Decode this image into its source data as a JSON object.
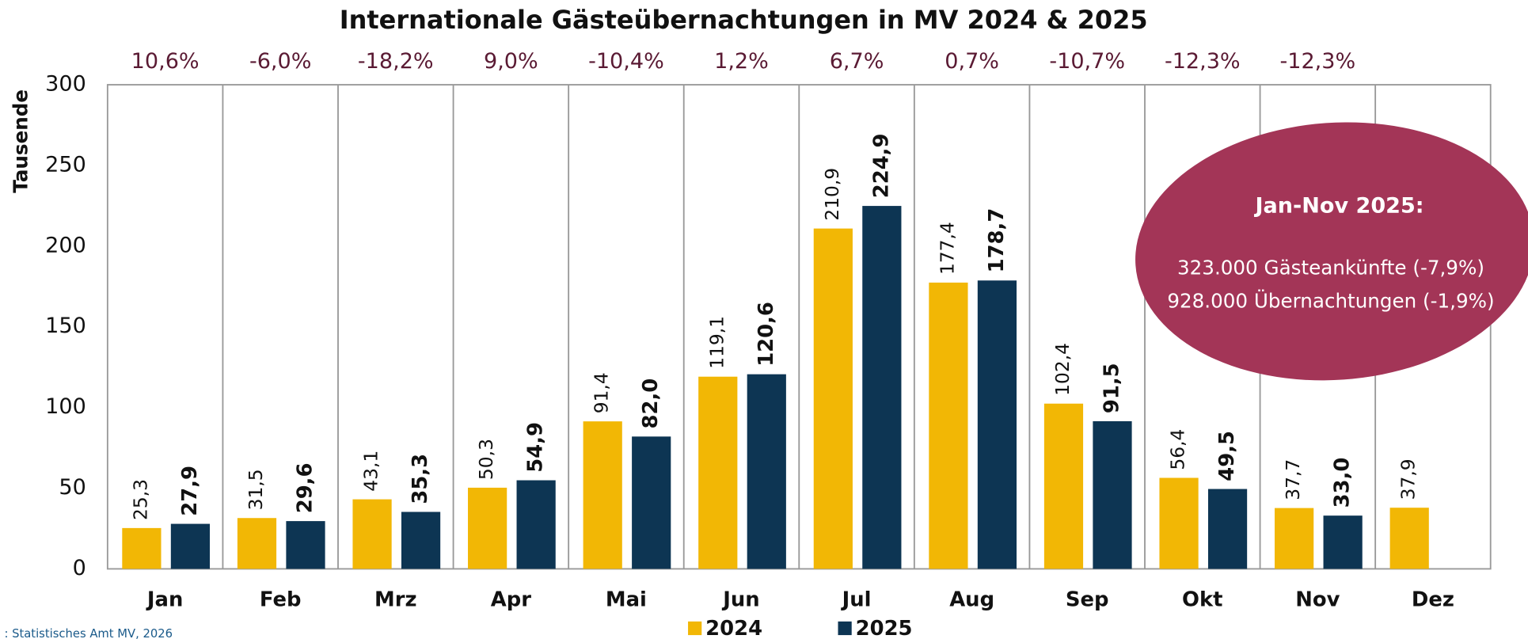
{
  "chart_data": {
    "type": "bar",
    "title": "Internationale Gästeübernachtungen in MV 2024 & 2025",
    "y_label": "Tausende",
    "categories": [
      "Jan",
      "Feb",
      "Mrz",
      "Apr",
      "Mai",
      "Jun",
      "Jul",
      "Aug",
      "Sep",
      "Okt",
      "Nov",
      "Dez"
    ],
    "series": [
      {
        "name": "2024",
        "color": "#f2b705",
        "values": [
          25.3,
          31.5,
          43.1,
          50.3,
          91.4,
          119.1,
          210.9,
          177.4,
          102.4,
          56.4,
          37.7,
          37.9
        ],
        "value_labels": [
          "25,3",
          "31,5",
          "43,1",
          "50,3",
          "91,4",
          "119,1",
          "210,9",
          "177,4",
          "102,4",
          "56,4",
          "37,7",
          "37,9"
        ]
      },
      {
        "name": "2025",
        "color": "#0d3553",
        "values": [
          27.9,
          29.6,
          35.3,
          54.9,
          82.0,
          120.6,
          224.9,
          178.7,
          91.5,
          49.5,
          33.0,
          null
        ],
        "value_labels": [
          "27,9",
          "29,6",
          "35,3",
          "54,9",
          "82,0",
          "120,6",
          "224,9",
          "178,7",
          "91,5",
          "49,5",
          "33,0",
          null
        ]
      }
    ],
    "change_labels": [
      "10,6%",
      "-6,0%",
      "-18,2%",
      "9,0%",
      "-10,4%",
      "1,2%",
      "6,7%",
      "0,7%",
      "-10,7%",
      "-12,3%",
      "-12,3%",
      null
    ],
    "ylim": [
      0,
      300
    ],
    "yticks": [
      0,
      50,
      100,
      150,
      200,
      250,
      300
    ],
    "annotation": {
      "heading": "Jan-Nov 2025:",
      "lines": [
        "323.000 Gästeankünfte (-7,9%)",
        "928.000 Übernachtungen (-1,9%)"
      ]
    },
    "source": ": Statistisches Amt MV, 2026"
  }
}
